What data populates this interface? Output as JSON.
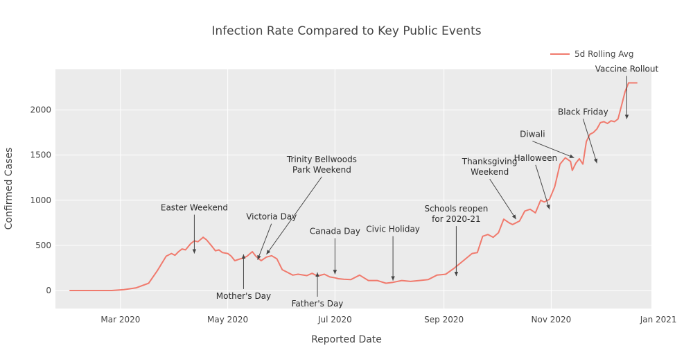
{
  "chart_data": {
    "type": "line",
    "title": "Infection Rate Compared to Key Public Events",
    "xlabel": "Reported Date",
    "ylabel": "Confirmed Cases",
    "x_ticks": [
      "Mar 2020",
      "May 2020",
      "Jul 2020",
      "Sep 2020",
      "Nov 2020",
      "Jan 2021"
    ],
    "x_tick_dates": [
      "2020-03-01",
      "2020-05-01",
      "2020-07-01",
      "2020-09-01",
      "2020-11-01",
      "2021-01-01"
    ],
    "y_ticks": [
      "0",
      "500",
      "1000",
      "1500",
      "2000"
    ],
    "y_tick_values": [
      0,
      500,
      1000,
      1500,
      2000
    ],
    "xlim": [
      "2020-01-24",
      "2020-12-28"
    ],
    "ylim": [
      -200,
      2450
    ],
    "grid": true,
    "legend_position": "top-right",
    "colors": {
      "line": "#f07a6d",
      "plot_bg": "#ebebeb",
      "grid": "#ffffff",
      "arrow": "#444444"
    },
    "series": [
      {
        "name": "5d Rolling Avg",
        "x": [
          "2020-02-01",
          "2020-02-15",
          "2020-02-25",
          "2020-03-03",
          "2020-03-10",
          "2020-03-17",
          "2020-03-22",
          "2020-03-27",
          "2020-03-30",
          "2020-04-01",
          "2020-04-03",
          "2020-04-05",
          "2020-04-07",
          "2020-04-10",
          "2020-04-12",
          "2020-04-14",
          "2020-04-17",
          "2020-04-19",
          "2020-04-22",
          "2020-04-24",
          "2020-04-26",
          "2020-04-28",
          "2020-05-01",
          "2020-05-03",
          "2020-05-05",
          "2020-05-08",
          "2020-05-10",
          "2020-05-12",
          "2020-05-15",
          "2020-05-17",
          "2020-05-20",
          "2020-05-23",
          "2020-05-26",
          "2020-05-29",
          "2020-06-01",
          "2020-06-04",
          "2020-06-07",
          "2020-06-10",
          "2020-06-15",
          "2020-06-18",
          "2020-06-21",
          "2020-06-25",
          "2020-06-28",
          "2020-07-01",
          "2020-07-03",
          "2020-07-06",
          "2020-07-10",
          "2020-07-15",
          "2020-07-20",
          "2020-07-25",
          "2020-07-30",
          "2020-08-03",
          "2020-08-08",
          "2020-08-13",
          "2020-08-18",
          "2020-08-23",
          "2020-08-28",
          "2020-09-02",
          "2020-09-07",
          "2020-09-12",
          "2020-09-17",
          "2020-09-20",
          "2020-09-23",
          "2020-09-26",
          "2020-09-29",
          "2020-10-02",
          "2020-10-05",
          "2020-10-08",
          "2020-10-10",
          "2020-10-12",
          "2020-10-14",
          "2020-10-17",
          "2020-10-20",
          "2020-10-23",
          "2020-10-26",
          "2020-10-28",
          "2020-10-31",
          "2020-11-03",
          "2020-11-06",
          "2020-11-09",
          "2020-11-12",
          "2020-11-13",
          "2020-11-15",
          "2020-11-17",
          "2020-11-19",
          "2020-11-21",
          "2020-11-23",
          "2020-11-25",
          "2020-11-27",
          "2020-11-29",
          "2020-12-01",
          "2020-12-03",
          "2020-12-05",
          "2020-12-07",
          "2020-12-09",
          "2020-12-11",
          "2020-12-13",
          "2020-12-15",
          "2020-12-16",
          "2020-12-18",
          "2020-12-19",
          "2020-12-20"
        ],
        "y": [
          0,
          0,
          0,
          10,
          30,
          80,
          220,
          380,
          410,
          390,
          430,
          460,
          450,
          520,
          550,
          540,
          590,
          560,
          490,
          440,
          450,
          420,
          410,
          380,
          330,
          350,
          360,
          380,
          430,
          380,
          330,
          370,
          385,
          350,
          230,
          200,
          170,
          180,
          165,
          190,
          160,
          180,
          150,
          140,
          130,
          125,
          120,
          170,
          110,
          110,
          80,
          90,
          110,
          100,
          110,
          120,
          170,
          180,
          250,
          330,
          410,
          420,
          600,
          620,
          590,
          640,
          790,
          750,
          730,
          750,
          770,
          880,
          900,
          860,
          1000,
          980,
          1010,
          1150,
          1400,
          1470,
          1430,
          1330,
          1410,
          1460,
          1400,
          1650,
          1730,
          1750,
          1790,
          1860,
          1870,
          1850,
          1880,
          1870,
          1900,
          2050,
          2200,
          2300,
          2300,
          2300,
          2300,
          2300
        ]
      }
    ],
    "annotations": [
      {
        "lines": [
          "Easter Weekend"
        ],
        "x": "2020-04-12",
        "y": 410
      },
      {
        "lines": [
          "Victoria Day"
        ],
        "x": "2020-05-18",
        "y": 340
      },
      {
        "lines": [
          "Mother's Day"
        ],
        "x": "2020-05-10",
        "y": 400
      },
      {
        "lines": [
          "Trinity Bellwoods",
          "Park Weekend"
        ],
        "x": "2020-05-23",
        "y": 400
      },
      {
        "lines": [
          "Canada Day"
        ],
        "x": "2020-07-01",
        "y": 180
      },
      {
        "lines": [
          "Father's Day"
        ],
        "x": "2020-06-21",
        "y": 200
      },
      {
        "lines": [
          "Civic Holiday"
        ],
        "x": "2020-08-03",
        "y": 110
      },
      {
        "lines": [
          "Schools reopen",
          "for 2020-21"
        ],
        "x": "2020-09-08",
        "y": 160
      },
      {
        "lines": [
          "Thanksgiving",
          "Weekend"
        ],
        "x": "2020-10-12",
        "y": 790
      },
      {
        "lines": [
          "Halloween"
        ],
        "x": "2020-10-31",
        "y": 900
      },
      {
        "lines": [
          "Diwali"
        ],
        "x": "2020-11-14",
        "y": 1470
      },
      {
        "lines": [
          "Black Friday"
        ],
        "x": "2020-11-27",
        "y": 1410
      },
      {
        "lines": [
          "Vaccine Rollout"
        ],
        "x": "2020-12-14",
        "y": 1900
      }
    ]
  }
}
